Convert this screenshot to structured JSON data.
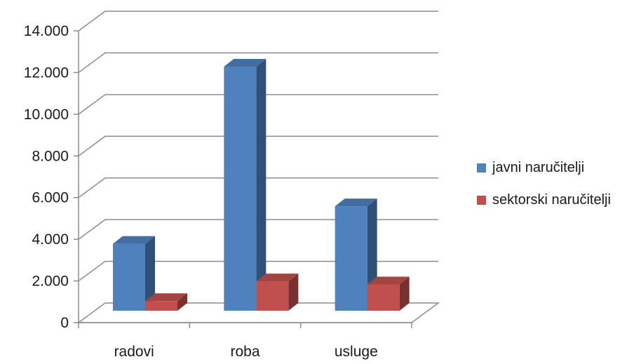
{
  "chart_data": {
    "type": "bar",
    "categories": [
      "radovi",
      "roba",
      "usluge"
    ],
    "series": [
      {
        "name": "javni naručitelji",
        "values": [
          3800,
          12300,
          5600
        ],
        "color": "#4F81BD"
      },
      {
        "name": "sektorski naručitelji",
        "values": [
          1050,
          2000,
          1850
        ],
        "color": "#C0504D"
      }
    ],
    "ylim": [
      0,
      14000
    ],
    "yticks": [
      "0",
      "2.000",
      "4.000",
      "6.000",
      "8.000",
      "10.000",
      "12.000",
      "14.000"
    ],
    "title": "",
    "xlabel": "",
    "ylabel": "",
    "grid": true,
    "legend_position": "right",
    "style": "3d-clustered-column"
  }
}
